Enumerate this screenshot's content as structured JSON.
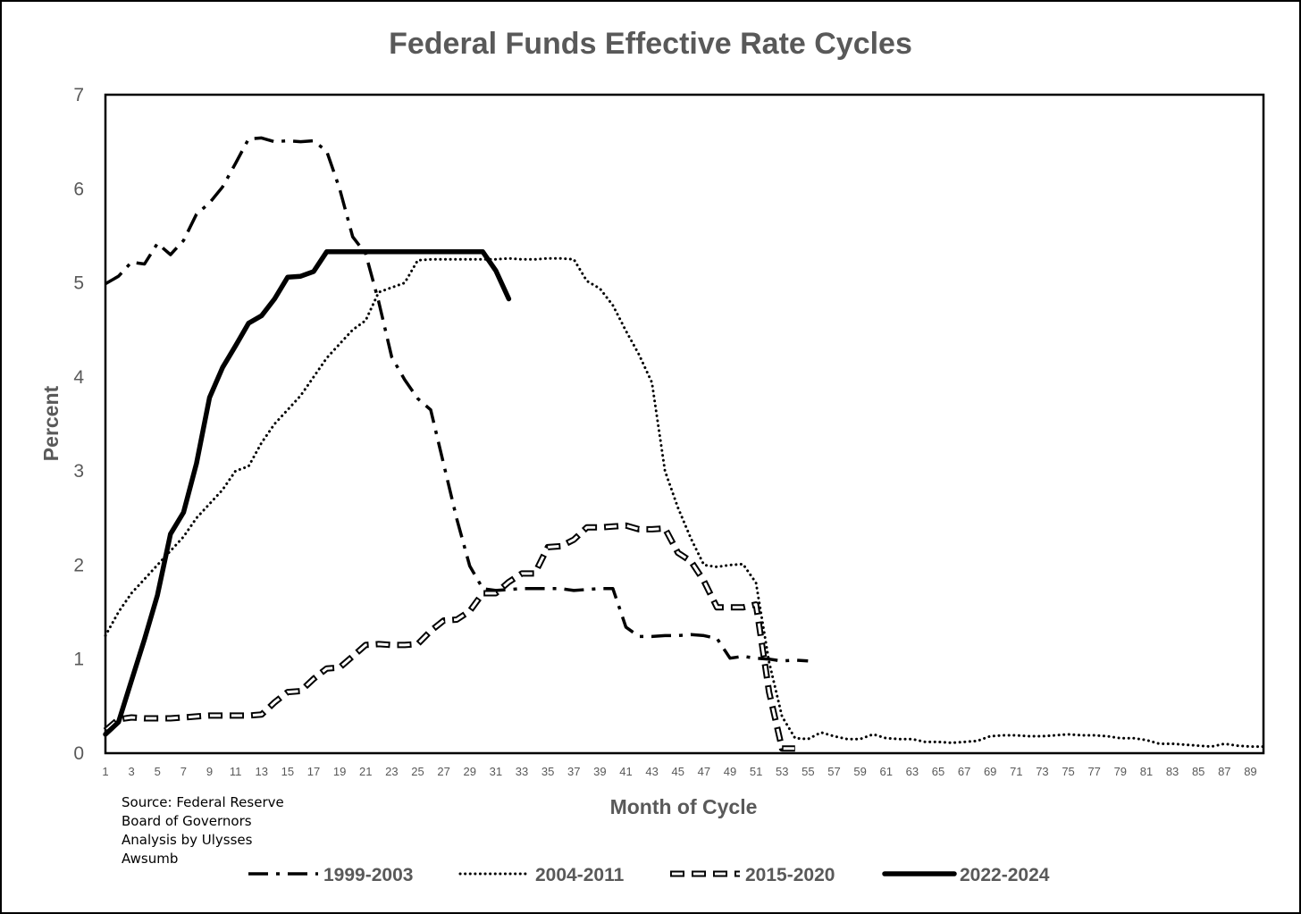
{
  "chart_data": {
    "type": "line",
    "title": "Federal Funds Effective Rate Cycles",
    "xlabel": "Month of Cycle",
    "ylabel": "Percent",
    "xlim": [
      1,
      90
    ],
    "ylim": [
      0,
      7
    ],
    "yticks": [
      0,
      1,
      2,
      3,
      4,
      5,
      6,
      7
    ],
    "xticks": [
      1,
      3,
      5,
      7,
      9,
      11,
      13,
      15,
      17,
      19,
      21,
      23,
      25,
      27,
      29,
      31,
      33,
      35,
      37,
      39,
      41,
      43,
      45,
      47,
      49,
      51,
      53,
      55,
      57,
      59,
      61,
      63,
      65,
      67,
      69,
      71,
      73,
      75,
      77,
      79,
      81,
      83,
      85,
      87,
      89
    ],
    "grid": false,
    "legend": "bottom",
    "series": [
      {
        "name": "1999-2003",
        "style": "dash-dot",
        "color": "#000000",
        "x": [
          1,
          2,
          3,
          4,
          5,
          6,
          7,
          8,
          9,
          10,
          11,
          12,
          13,
          14,
          15,
          16,
          17,
          18,
          19,
          20,
          21,
          22,
          23,
          24,
          25,
          26,
          27,
          28,
          29,
          30,
          31,
          32,
          33,
          34,
          35,
          36,
          37,
          38,
          39,
          40,
          41,
          42,
          43,
          44,
          45,
          46,
          47,
          48,
          49,
          50,
          51,
          52,
          53,
          54,
          55
        ],
        "values": [
          4.99,
          5.07,
          5.22,
          5.2,
          5.42,
          5.3,
          5.45,
          5.73,
          5.85,
          6.02,
          6.27,
          6.53,
          6.54,
          6.5,
          6.51,
          6.5,
          6.51,
          6.4,
          6.0,
          5.49,
          5.31,
          4.8,
          4.21,
          3.97,
          3.77,
          3.65,
          3.07,
          2.49,
          1.99,
          1.75,
          1.73,
          1.74,
          1.75,
          1.75,
          1.75,
          1.75,
          1.73,
          1.74,
          1.75,
          1.75,
          1.34,
          1.24,
          1.24,
          1.25,
          1.25,
          1.26,
          1.25,
          1.22,
          1.01,
          1.03,
          1.01,
          1.0,
          0.98,
          0.99,
          0.98
        ]
      },
      {
        "name": "2004-2011",
        "style": "dotted",
        "color": "#000000",
        "x": [
          1,
          2,
          3,
          4,
          5,
          6,
          7,
          8,
          9,
          10,
          11,
          12,
          13,
          14,
          15,
          16,
          17,
          18,
          19,
          20,
          21,
          22,
          23,
          24,
          25,
          26,
          27,
          28,
          29,
          30,
          31,
          32,
          33,
          34,
          35,
          36,
          37,
          38,
          39,
          40,
          41,
          42,
          43,
          44,
          45,
          46,
          47,
          48,
          49,
          50,
          51,
          52,
          53,
          54,
          55,
          56,
          57,
          58,
          59,
          60,
          61,
          62,
          63,
          64,
          65,
          66,
          67,
          68,
          69,
          70,
          71,
          72,
          73,
          74,
          75,
          76,
          77,
          78,
          79,
          80,
          81,
          82,
          83,
          84,
          85,
          86,
          87,
          88,
          89,
          90
        ],
        "values": [
          1.25,
          1.5,
          1.7,
          1.85,
          2.0,
          2.15,
          2.3,
          2.5,
          2.65,
          2.8,
          3.0,
          3.05,
          3.3,
          3.5,
          3.65,
          3.8,
          4.0,
          4.2,
          4.35,
          4.5,
          4.6,
          4.9,
          4.95,
          5.0,
          5.24,
          5.25,
          5.25,
          5.25,
          5.25,
          5.25,
          5.25,
          5.26,
          5.25,
          5.25,
          5.26,
          5.26,
          5.25,
          5.02,
          4.94,
          4.76,
          4.49,
          4.24,
          3.94,
          3.0,
          2.61,
          2.28,
          2.0,
          1.98,
          2.0,
          2.01,
          1.81,
          0.97,
          0.39,
          0.16,
          0.15,
          0.22,
          0.18,
          0.15,
          0.15,
          0.2,
          0.16,
          0.15,
          0.15,
          0.12,
          0.12,
          0.11,
          0.12,
          0.13,
          0.18,
          0.19,
          0.19,
          0.18,
          0.18,
          0.19,
          0.2,
          0.19,
          0.19,
          0.18,
          0.16,
          0.16,
          0.14,
          0.1,
          0.1,
          0.09,
          0.08,
          0.07,
          0.1,
          0.08,
          0.07,
          0.07
        ]
      },
      {
        "name": "2015-2020",
        "style": "hollow-dash",
        "color": "#000000",
        "x": [
          1,
          2,
          3,
          4,
          5,
          6,
          7,
          8,
          9,
          10,
          11,
          12,
          13,
          14,
          15,
          16,
          17,
          18,
          19,
          20,
          21,
          22,
          23,
          24,
          25,
          26,
          27,
          28,
          29,
          30,
          31,
          32,
          33,
          34,
          35,
          36,
          37,
          38,
          39,
          40,
          41,
          42,
          43,
          44,
          45,
          46,
          47,
          48,
          49,
          50,
          51,
          52,
          53,
          54
        ],
        "values": [
          0.24,
          0.36,
          0.38,
          0.37,
          0.37,
          0.37,
          0.38,
          0.39,
          0.4,
          0.4,
          0.4,
          0.4,
          0.41,
          0.54,
          0.65,
          0.66,
          0.79,
          0.9,
          0.91,
          1.03,
          1.15,
          1.16,
          1.15,
          1.15,
          1.16,
          1.3,
          1.41,
          1.42,
          1.51,
          1.7,
          1.7,
          1.82,
          1.91,
          1.91,
          2.19,
          2.2,
          2.27,
          2.4,
          2.4,
          2.41,
          2.42,
          2.38,
          2.38,
          2.39,
          2.13,
          2.04,
          1.83,
          1.55,
          1.55,
          1.55,
          1.58,
          0.65,
          0.05,
          0.05
        ]
      },
      {
        "name": "2022-2024",
        "style": "solid",
        "color": "#000000",
        "x": [
          1,
          2,
          3,
          4,
          5,
          6,
          7,
          8,
          9,
          10,
          11,
          12,
          13,
          14,
          15,
          16,
          17,
          18,
          19,
          20,
          21,
          22,
          23,
          24,
          25,
          26,
          27,
          28,
          29,
          30,
          31,
          32
        ],
        "values": [
          0.2,
          0.33,
          0.77,
          1.21,
          1.68,
          2.33,
          2.56,
          3.08,
          3.78,
          4.1,
          4.33,
          4.57,
          4.65,
          4.83,
          5.06,
          5.07,
          5.12,
          5.33,
          5.33,
          5.33,
          5.33,
          5.33,
          5.33,
          5.33,
          5.33,
          5.33,
          5.33,
          5.33,
          5.33,
          5.33,
          5.13,
          4.83
        ]
      }
    ],
    "source_lines": [
      "Source: Federal Reserve",
      "Board of Governors",
      "Analysis by Ulysses",
      "Awsumb"
    ]
  }
}
